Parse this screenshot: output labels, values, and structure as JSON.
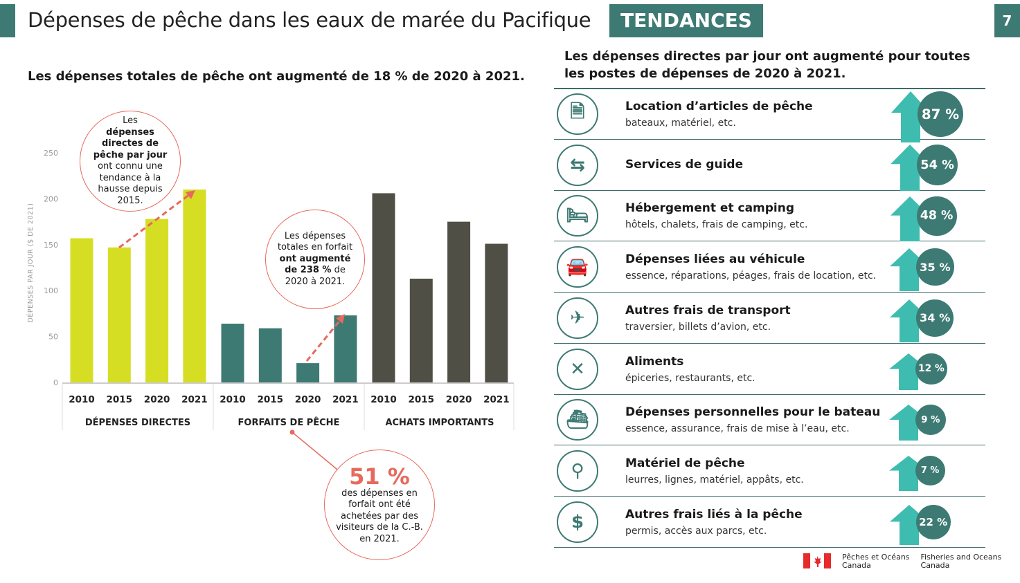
{
  "header": {
    "title": "Dépenses de pêche dans les eaux de marée du Pacifique",
    "badge": "TENDANCES",
    "page_number": "7"
  },
  "left": {
    "subtitle": "Les dépenses totales de pêche ont augmenté de 18 % de 2020 à 2021."
  },
  "callouts": {
    "c1": {
      "pre": "Les",
      "bold": "dépenses directes de pêche par jour",
      "post": "ont connu une tendance à la hausse depuis 2015."
    },
    "c2": {
      "pre": "Les dépenses totales en forfait",
      "bold": "ont augmenté de 238 %",
      "post": "de 2020 à 2021."
    },
    "c3": {
      "big": "51 %",
      "text": "des dépenses en forfait ont été achetées par des visiteurs de la C.-B. en 2021."
    }
  },
  "chart_data": {
    "type": "bar",
    "ylabel": "DÉPENSES PAR JOUR ($ DE 2021)",
    "ylim": [
      0,
      250
    ],
    "yticks": [
      "0",
      "50",
      "100",
      "150",
      "200",
      "250"
    ],
    "grid": false,
    "groups": [
      {
        "name": "DÉPENSES DIRECTES",
        "color": "#d6de23",
        "categories": [
          "2010",
          "2015",
          "2020",
          "2021"
        ],
        "values": [
          157,
          147,
          178,
          210
        ]
      },
      {
        "name": "FORFAITS DE PÊCHE",
        "color": "#3d7a73",
        "categories": [
          "2010",
          "2015",
          "2020",
          "2021"
        ],
        "values": [
          64,
          59,
          21,
          73
        ]
      },
      {
        "name": "ACHATS IMPORTANTS",
        "color": "#4f4f45",
        "categories": [
          "2010",
          "2015",
          "2020",
          "2021"
        ],
        "values": [
          206,
          113,
          175,
          151
        ]
      }
    ]
  },
  "right": {
    "subtitle": "Les dépenses directes par jour ont augmenté pour toutes les postes de dépenses de 2020 à 2021.",
    "items": [
      {
        "title": "Location d’articles de pêche",
        "sub": "bateaux, matériel, etc.",
        "pct": "87 %",
        "value": 87,
        "icon": "document-icon",
        "glyph": "🗎"
      },
      {
        "title": "Services de guide",
        "sub": "",
        "pct": "54 %",
        "value": 54,
        "icon": "signpost-icon",
        "glyph": "⇆"
      },
      {
        "title": "Hébergement et camping",
        "sub": "hôtels, chalets, frais de camping, etc.",
        "pct": "48 %",
        "value": 48,
        "icon": "bed-icon",
        "glyph": "🛏"
      },
      {
        "title": "Dépenses liées au véhicule",
        "sub": "essence, réparations, péages, frais de location, etc.",
        "pct": "35 %",
        "value": 35,
        "icon": "car-icon",
        "glyph": "🚘"
      },
      {
        "title": "Autres frais de transport",
        "sub": "traversier, billets d’avion, etc.",
        "pct": "34 %",
        "value": 34,
        "icon": "airplane-icon",
        "glyph": "✈"
      },
      {
        "title": "Aliments",
        "sub": "épiceries, restaurants, etc.",
        "pct": "12 %",
        "value": 12,
        "icon": "fork-knife-icon",
        "glyph": "✕"
      },
      {
        "title": "Dépenses personnelles pour le bateau",
        "sub": "essence, assurance, frais de mise à l’eau, etc.",
        "pct": "9 %",
        "value": 9,
        "icon": "boat-icon",
        "glyph": "⛴"
      },
      {
        "title": "Matériel de pêche",
        "sub": "leurres, lignes, matériel, appâts, etc.",
        "pct": "7 %",
        "value": 7,
        "icon": "fishing-hook-icon",
        "glyph": "⚲"
      },
      {
        "title": "Autres frais liés à la pêche",
        "sub": "permis, accès aux parcs, etc.",
        "pct": "22 %",
        "value": 22,
        "icon": "dollar-icon",
        "glyph": "$"
      }
    ]
  },
  "footer": {
    "fr_1": "Pêches et Océans",
    "fr_2": "Canada",
    "en_1": "Fisheries and Oceans",
    "en_2": "Canada"
  },
  "colors": {
    "teal": "#3d7a73",
    "arrow": "#3fbcb0",
    "lime": "#d6de23",
    "dark": "#4f4f45",
    "callout": "#e66a5c"
  }
}
